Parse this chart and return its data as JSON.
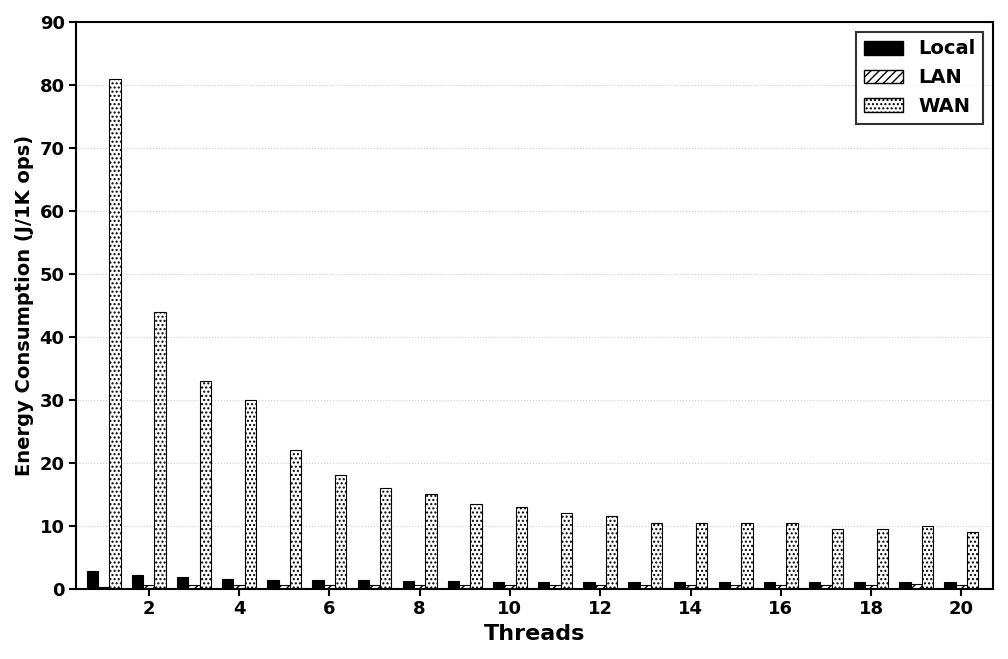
{
  "threads": [
    1,
    2,
    3,
    4,
    5,
    6,
    7,
    8,
    9,
    10,
    11,
    12,
    13,
    14,
    15,
    16,
    17,
    18,
    19,
    20
  ],
  "local": [
    2.8,
    2.1,
    1.8,
    1.6,
    1.4,
    1.3,
    1.3,
    1.2,
    1.2,
    1.1,
    1.1,
    1.1,
    1.1,
    1.1,
    1.1,
    1.0,
    1.0,
    1.0,
    1.0,
    1.0
  ],
  "lan": [
    0.3,
    0.5,
    0.5,
    0.6,
    0.5,
    0.5,
    0.5,
    0.5,
    0.5,
    0.5,
    0.5,
    0.5,
    0.5,
    0.6,
    0.5,
    0.5,
    0.5,
    0.5,
    0.8,
    0.5
  ],
  "wan": [
    81.0,
    44.0,
    33.0,
    30.0,
    22.0,
    18.0,
    16.0,
    15.0,
    13.5,
    13.0,
    12.0,
    11.5,
    10.5,
    10.5,
    10.5,
    10.5,
    9.5,
    9.5,
    10.0,
    9.0
  ],
  "xlabel": "Threads",
  "ylabel": "Energy Consumption (J/1K ops)",
  "ylim": [
    0,
    90
  ],
  "yticks": [
    0,
    10,
    20,
    30,
    40,
    50,
    60,
    70,
    80,
    90
  ],
  "xtick_positions": [
    2,
    4,
    6,
    8,
    10,
    12,
    14,
    16,
    18,
    20
  ],
  "xtick_labels": [
    "2",
    "4",
    "6",
    "8",
    "10",
    "12",
    "14",
    "16",
    "18",
    "20"
  ],
  "legend_labels": [
    "Local",
    "LAN",
    "WAN"
  ],
  "bar_width": 0.25,
  "grid_linestyle": ":",
  "grid_alpha": 0.6,
  "grid_color": "#aaaaaa"
}
